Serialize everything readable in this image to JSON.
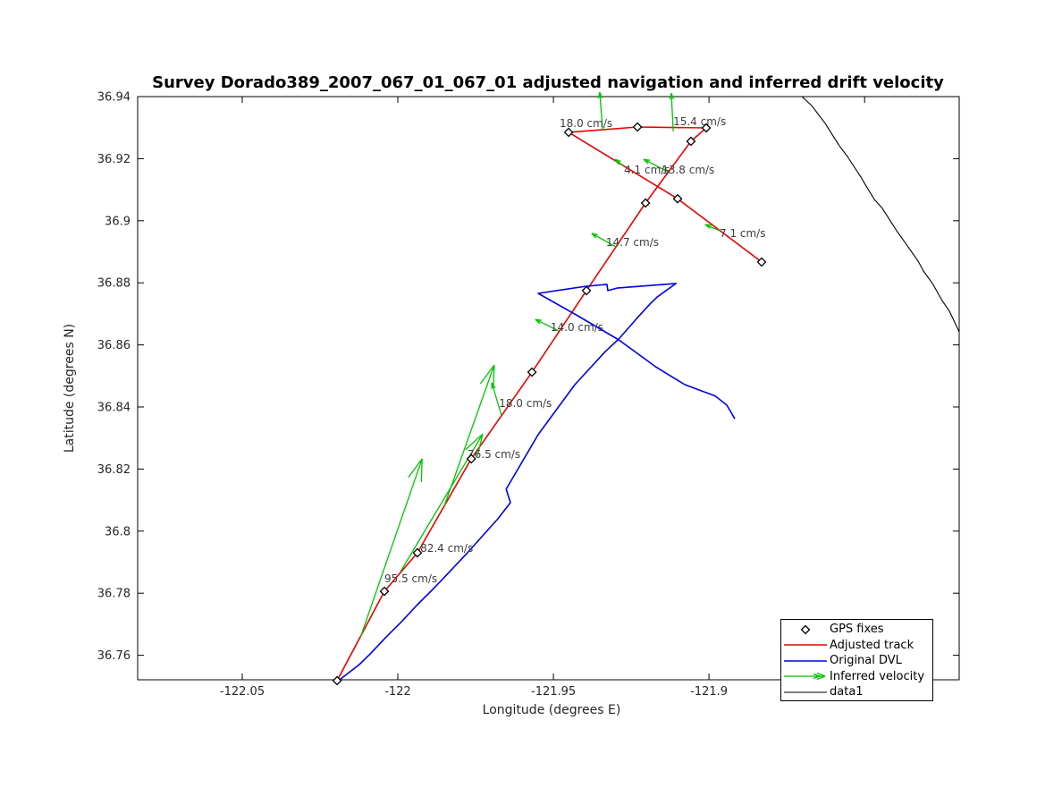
{
  "figure": {
    "title": "Survey Dorado389_2007_067_01_067_01 adjusted navigation and inferred drift velocity",
    "xlabel": "Longitude (degrees E)",
    "ylabel": "Latitude (degrees N)"
  },
  "colors": {
    "adjusted_track": "#eb0000",
    "original_dvl": "#0000e6",
    "inferred_velocity": "#00c400",
    "data1": "#000000",
    "axis": "#000000",
    "tick_label": "#262626",
    "annotation": "#3c3c3c",
    "marker_edge": "#000000",
    "marker_fill": "#ffffff"
  },
  "chart_data": {
    "type": "line",
    "title": "Survey Dorado389_2007_067_01_067_01 adjusted navigation and inferred drift velocity",
    "xlabel": "Longitude (degrees E)",
    "ylabel": "Latitude (degrees N)",
    "xlim": [
      -122.0836,
      -121.8196
    ],
    "ylim": [
      36.7521,
      36.94
    ],
    "grid": false,
    "xticks": {
      "values": [
        -122.05,
        -122.0,
        -121.95,
        -121.9,
        -121.85
      ],
      "labels": [
        "-122.05",
        "-122",
        "-121.95",
        "-121.9",
        "-121.85"
      ]
    },
    "yticks": {
      "values": [
        36.76,
        36.78,
        36.8,
        36.82,
        36.84,
        36.86,
        36.88,
        36.9,
        36.92,
        36.94
      ],
      "labels": [
        "36.76",
        "36.78",
        "36.8",
        "36.82",
        "36.84",
        "36.86",
        "36.88",
        "36.9",
        "36.92",
        "36.94"
      ]
    },
    "series": [
      {
        "name": "Adjusted track",
        "type": "line",
        "color_key": "adjusted_track",
        "width": 1.6,
        "points": [
          [
            -122.0195,
            36.7518
          ],
          [
            -122.0043,
            36.7806
          ],
          [
            -121.9937,
            36.793
          ],
          [
            -121.9764,
            36.8233
          ],
          [
            -121.9569,
            36.8512
          ],
          [
            -121.9394,
            36.8775
          ],
          [
            -121.9204,
            36.9057
          ],
          [
            -121.9058,
            36.9256
          ],
          [
            -121.9009,
            36.9299
          ],
          [
            -121.923,
            36.9302
          ],
          [
            -121.9451,
            36.9285
          ],
          [
            -121.9101,
            36.9071
          ],
          [
            -121.8831,
            36.8867
          ]
        ]
      },
      {
        "name": "Original DVL",
        "type": "line",
        "color_key": "original_dvl",
        "width": 1.6,
        "points": [
          [
            -122.0195,
            36.7515
          ],
          [
            -122.0124,
            36.757
          ],
          [
            -122.0089,
            36.7604
          ],
          [
            -122.0037,
            36.7659
          ],
          [
            -121.9988,
            36.7708
          ],
          [
            -121.9937,
            36.7763
          ],
          [
            -121.9891,
            36.7809
          ],
          [
            -121.9833,
            36.787
          ],
          [
            -121.9779,
            36.7927
          ],
          [
            -121.973,
            36.7982
          ],
          [
            -121.9678,
            36.804
          ],
          [
            -121.9638,
            36.8092
          ],
          [
            -121.9652,
            36.8135
          ],
          [
            -121.9549,
            36.8311
          ],
          [
            -121.9431,
            36.8472
          ],
          [
            -121.9333,
            36.8579
          ],
          [
            -121.929,
            36.8619
          ],
          [
            -121.923,
            36.8688
          ],
          [
            -121.919,
            36.8731
          ],
          [
            -121.9167,
            36.8754
          ],
          [
            -121.9106,
            36.8798
          ],
          [
            -121.9296,
            36.8783
          ],
          [
            -121.9325,
            36.8775
          ],
          [
            -121.9328,
            36.8795
          ],
          [
            -121.9394,
            36.8789
          ],
          [
            -121.9549,
            36.8766
          ],
          [
            -121.9422,
            36.8694
          ],
          [
            -121.929,
            36.8616
          ],
          [
            -121.9172,
            36.853
          ],
          [
            -121.9078,
            36.8472
          ],
          [
            -121.898,
            36.8435
          ],
          [
            -121.8943,
            36.8406
          ],
          [
            -121.8917,
            36.8362
          ]
        ]
      },
      {
        "name": "data1",
        "type": "line",
        "color_key": "data1",
        "width": 1.1,
        "points": [
          [
            -121.8701,
            36.94
          ],
          [
            -121.867,
            36.9371
          ],
          [
            -121.8627,
            36.9314
          ],
          [
            -121.8583,
            36.9244
          ],
          [
            -121.8555,
            36.9207
          ],
          [
            -121.8512,
            36.9141
          ],
          [
            -121.85,
            36.912
          ],
          [
            -121.8469,
            36.9069
          ],
          [
            -121.8443,
            36.904
          ],
          [
            -121.8397,
            36.8968
          ],
          [
            -121.8368,
            36.8927
          ],
          [
            -121.8328,
            36.887
          ],
          [
            -121.8311,
            36.8838
          ],
          [
            -121.8282,
            36.8798
          ],
          [
            -121.8253,
            36.8746
          ],
          [
            -121.8227,
            36.8708
          ],
          [
            -121.8196,
            36.8642
          ]
        ]
      },
      {
        "name": "GPS fixes",
        "type": "scatter",
        "marker": "diamond",
        "color_key": "marker_edge",
        "points": [
          [
            -122.0195,
            36.7518
          ],
          [
            -122.0043,
            36.7806
          ],
          [
            -121.9937,
            36.793
          ],
          [
            -121.9764,
            36.8233
          ],
          [
            -121.9569,
            36.8512
          ],
          [
            -121.9394,
            36.8775
          ],
          [
            -121.9204,
            36.9057
          ],
          [
            -121.9058,
            36.9256
          ],
          [
            -121.9009,
            36.9299
          ],
          [
            -121.923,
            36.9302
          ],
          [
            -121.9451,
            36.9285
          ],
          [
            -121.9101,
            36.9071
          ],
          [
            -121.8831,
            36.8867
          ]
        ]
      }
    ],
    "velocity_arrows": [
      {
        "label": "95.5 cm/s",
        "base": [
          -122.0119,
          36.7661
        ],
        "tip": [
          -121.9922,
          36.8233
        ],
        "label_pos": [
          -122.0043,
          36.7835
        ]
      },
      {
        "label": "82.4 cm/s",
        "base": [
          -121.9991,
          36.787
        ],
        "tip": [
          -121.9727,
          36.8313
        ],
        "label_pos": [
          -121.9928,
          36.7933
        ]
      },
      {
        "label": "76.5 cm/s",
        "base": [
          -121.985,
          36.8083
        ],
        "tip": [
          -121.969,
          36.8535
        ],
        "label_pos": [
          -121.9776,
          36.8236
        ]
      },
      {
        "label": "18.0 cm/s",
        "base": [
          -121.9667,
          36.8374
        ],
        "tip": [
          -121.9698,
          36.8478
        ],
        "label_pos": [
          -121.9675,
          36.84
        ]
      },
      {
        "label": "14.0 cm/s",
        "base": [
          -121.9483,
          36.8645
        ],
        "tip": [
          -121.9558,
          36.8682
        ],
        "label_pos": [
          -121.9509,
          36.8645
        ]
      },
      {
        "label": "14.7 cm/s",
        "base": [
          -121.9299,
          36.8916
        ],
        "tip": [
          -121.9377,
          36.8959
        ],
        "label_pos": [
          -121.9331,
          36.8919
        ]
      },
      {
        "label": "4.1 cm/s",
        "base": [
          -121.9276,
          36.9178
        ],
        "tip": [
          -121.9302,
          36.9198
        ],
        "label_pos": [
          -121.9273,
          36.9152
        ]
      },
      {
        "label": "13.8 cm/s",
        "base": [
          -121.9132,
          36.9158
        ],
        "tip": [
          -121.921,
          36.9198
        ],
        "label_pos": [
          -121.9152,
          36.9152
        ]
      },
      {
        "label": "18.0 cm/s",
        "base": [
          -121.9342,
          36.9293
        ],
        "tip": [
          -121.9351,
          36.9414
        ],
        "label_pos": [
          -121.948,
          36.9302
        ]
      },
      {
        "label": "15.4 cm/s",
        "base": [
          -121.9115,
          36.9288
        ],
        "tip": [
          -121.9121,
          36.9411
        ],
        "label_pos": [
          -121.9115,
          36.9308
        ]
      },
      {
        "label": "7.1 cm/s",
        "base": [
          -121.8966,
          36.8968
        ],
        "tip": [
          -121.9012,
          36.8988
        ],
        "label_pos": [
          -121.8966,
          36.8948
        ]
      }
    ],
    "legend": {
      "position": "bottom-right",
      "entries": [
        {
          "label": "GPS fixes",
          "icon": "diamond-marker"
        },
        {
          "label": "Adjusted track",
          "icon": "red-line"
        },
        {
          "label": "Original DVL",
          "icon": "blue-line"
        },
        {
          "label": "Inferred velocity",
          "icon": "green-arrow"
        },
        {
          "label": "data1",
          "icon": "black-line"
        }
      ]
    }
  }
}
